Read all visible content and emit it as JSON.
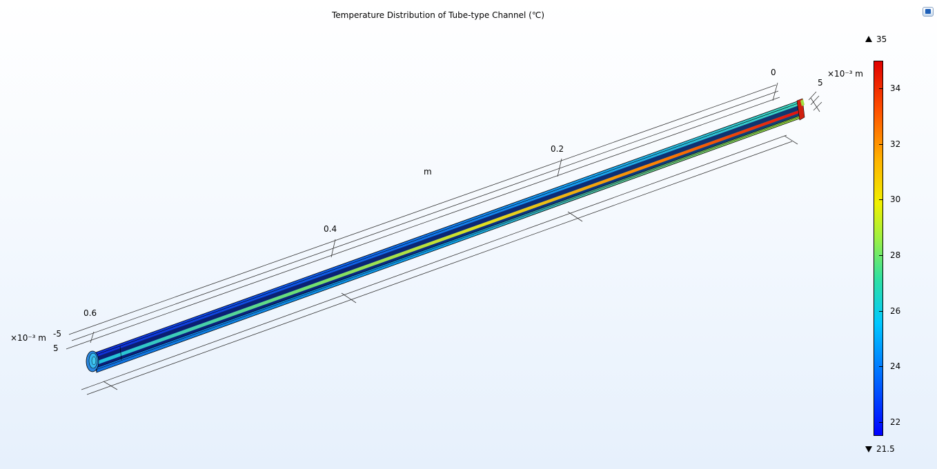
{
  "title": "Temperature Distribution of Tube-type Channel (℃)",
  "axes": {
    "x_ticks": [
      "0",
      "0.2",
      "0.4",
      "0.6"
    ],
    "x_unit": "m",
    "side_scale": "×10⁻³ m",
    "side_ticks_left": [
      "-5",
      "5"
    ],
    "side_tick_right": "5"
  },
  "colorbar": {
    "max": "35",
    "min": "21.5",
    "ticks": [
      {
        "label": "34",
        "value": 34
      },
      {
        "label": "32",
        "value": 32
      },
      {
        "label": "30",
        "value": 30
      },
      {
        "label": "28",
        "value": 28
      },
      {
        "label": "26",
        "value": 26
      },
      {
        "label": "24",
        "value": 24
      },
      {
        "label": "22",
        "value": 22
      }
    ],
    "range": [
      21.5,
      35
    ]
  },
  "icons": {
    "corner_button": "view-toggle-icon"
  }
}
